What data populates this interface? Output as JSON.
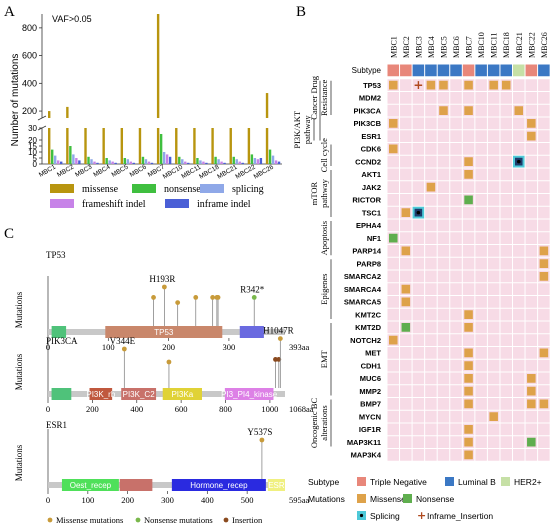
{
  "panel_labels": [
    "A",
    "B",
    "C"
  ],
  "panel_a": {
    "annotation": "VAF>0.05",
    "ylabel": "Number of mutations",
    "upper_ticks": [
      "800",
      "600",
      "400",
      "200"
    ],
    "lower_ticks": [
      "30",
      "20",
      "15",
      "10",
      "5",
      "0"
    ],
    "legend": [
      {
        "label": "missense",
        "color": "#b8950f"
      },
      {
        "label": "nonsense",
        "color": "#3fbf3f"
      },
      {
        "label": "splicing",
        "color": "#8fa8e8"
      },
      {
        "label": "frameshift indel",
        "color": "#c783e8"
      },
      {
        "label": "inframe indel",
        "color": "#4a5fd6"
      }
    ]
  },
  "chart_data": {
    "type": "bar",
    "categories": [
      "MBC1",
      "MBC2",
      "MBC3",
      "MBC4",
      "MBC5",
      "MBC6",
      "MBC7",
      "MBC10",
      "MBC11",
      "MBC18",
      "MBC21",
      "MBC22",
      "MBC26"
    ],
    "series": [
      {
        "name": "missense",
        "values": [
          200,
          230,
          120,
          110,
          110,
          120,
          950,
          110,
          110,
          115,
          120,
          150,
          330
        ]
      },
      {
        "name": "nonsense",
        "values": [
          12,
          15,
          6,
          5,
          5,
          6,
          25,
          6,
          5,
          6,
          6,
          8,
          12
        ]
      },
      {
        "name": "splicing",
        "values": [
          7,
          8,
          4,
          3,
          4,
          4,
          10,
          4,
          3,
          4,
          4,
          5,
          7
        ]
      },
      {
        "name": "frameshift indel",
        "values": [
          3,
          5,
          2,
          2,
          2,
          2,
          8,
          2,
          2,
          2,
          2,
          4,
          3
        ]
      },
      {
        "name": "inframe indel",
        "values": [
          2,
          3,
          1,
          1,
          1,
          1,
          6,
          1,
          1,
          1,
          1,
          5,
          2
        ]
      }
    ],
    "ylabel": "Number of mutations",
    "ylim": [
      0,
      900
    ],
    "axis_break": [
      30,
      150
    ]
  },
  "panel_b": {
    "samples": [
      "MBC1",
      "MBC2",
      "MBC3",
      "MBC4",
      "MBC5",
      "MBC6",
      "MBC7",
      "MBC10",
      "MBC11",
      "MBC18",
      "MBC21",
      "MBC22",
      "MBC26"
    ],
    "subtype_label": "Subtype",
    "subtypes": [
      "TN",
      "TN",
      "LB",
      "LB",
      "LB",
      "LB",
      "TN",
      "LB",
      "LB",
      "LB",
      "HER2",
      "TN",
      "LB"
    ],
    "groups": [
      {
        "label": [
          "Cancer Drug",
          "Resistance"
        ],
        "start": 0,
        "end": 3
      },
      {
        "label": [
          "PI3K/AKT",
          "pathway"
        ],
        "start": 3,
        "end": 5,
        "outer": true
      },
      {
        "label": [
          "Cell cycle"
        ],
        "start": 5,
        "end": 7
      },
      {
        "label": [
          "mTOR",
          "pathway"
        ],
        "start": 7,
        "end": 11
      },
      {
        "label": [
          "Apoptosis"
        ],
        "start": 11,
        "end": 14
      },
      {
        "label": [
          "Epigenes"
        ],
        "start": 14,
        "end": 19
      },
      {
        "label": [
          "EMT"
        ],
        "start": 19,
        "end": 25
      },
      {
        "label": [
          "Oncogenic BC",
          "alterations"
        ],
        "start": 25,
        "end": 29
      }
    ],
    "genes": [
      "TP53",
      "MDM2",
      "PIK3CA",
      "PIK3CB",
      "ESR1",
      "CDK6",
      "CCND2",
      "AKT1",
      "JAK2",
      "RICTOR",
      "TSC1",
      "EPHA4",
      "NF1",
      "PARP14",
      "PARP8",
      "SMARCA2",
      "SMARCA4",
      "SMARCA5",
      "KMT2C",
      "KMT2D",
      "NOTCH2",
      "MET",
      "CDH1",
      "MUC6",
      "MMP2",
      "BMP7",
      "MYCN",
      "IGF1R",
      "MAP3K11",
      "MAP3K4"
    ],
    "cells": [
      [
        0,
        "Missense"
      ],
      [
        3,
        "Missense"
      ],
      [
        4,
        "Missense"
      ],
      [
        6,
        "Missense"
      ],
      [
        8,
        "Missense"
      ],
      [
        9,
        "Missense"
      ],
      [
        2,
        "Inframe_Insertion"
      ],
      [
        4,
        "Missense"
      ],
      [
        6,
        "Missense"
      ],
      [
        10,
        "Missense"
      ],
      [
        0,
        "Missense"
      ],
      [
        11,
        "Missense"
      ],
      [
        11,
        "Missense"
      ],
      [
        0,
        "Missense"
      ],
      [
        6,
        "Missense"
      ],
      [
        10,
        "Splicing"
      ],
      [
        6,
        "Missense"
      ],
      [
        3,
        "Missense"
      ],
      [
        6,
        "Nonsense"
      ],
      [
        2,
        "Splicing"
      ],
      [
        1,
        "Missense"
      ],
      [
        0,
        "Nonsense"
      ],
      [
        1,
        "Missense"
      ],
      [
        12,
        "Missense"
      ],
      [
        12,
        "Missense"
      ],
      [
        12,
        "Missense"
      ],
      [
        1,
        "Missense"
      ],
      [
        1,
        "Missense"
      ],
      [
        6,
        "Missense"
      ],
      [
        6,
        "Missense"
      ],
      [
        1,
        "Nonsense"
      ],
      [
        0,
        "Missense"
      ],
      [
        6,
        "Missense"
      ],
      [
        12,
        "Missense"
      ],
      [
        6,
        "Missense"
      ],
      [
        6,
        "Missense"
      ],
      [
        11,
        "Missense"
      ],
      [
        6,
        "Missense"
      ],
      [
        11,
        "Missense"
      ],
      [
        6,
        "Missense"
      ],
      [
        11,
        "Missense"
      ],
      [
        12,
        "Missense"
      ],
      [
        8,
        "Missense"
      ],
      [
        6,
        "Missense"
      ],
      [
        6,
        "Missense"
      ],
      [
        11,
        "Nonsense"
      ],
      [
        6,
        "Missense"
      ]
    ],
    "cell_rows": [
      0,
      0,
      0,
      0,
      0,
      0,
      0,
      2,
      2,
      2,
      3,
      3,
      4,
      5,
      6,
      6,
      7,
      8,
      9,
      10,
      10,
      12,
      13,
      13,
      14,
      15,
      16,
      17,
      18,
      19,
      19,
      20,
      21,
      21,
      22,
      23,
      23,
      24,
      24,
      25,
      25,
      25,
      26,
      27,
      28,
      28,
      29
    ],
    "legend": {
      "subtype_title": "Subtype",
      "subtype_items": [
        {
          "label": "Triple Negative",
          "color": "#e8877a"
        },
        {
          "label": "Luminal B",
          "color": "#3b78c4"
        },
        {
          "label": "HER2+",
          "color": "#c6e0a6"
        }
      ],
      "mutation_title": "Mutations",
      "mutation_items": [
        {
          "label": "Missense",
          "color": "#dea24a"
        },
        {
          "label": "Nonsense",
          "color": "#5fae4e"
        },
        {
          "label": "Splicing",
          "color": "#4ec9d8"
        },
        {
          "label": "Inframe_Insertion",
          "color": "#b04a1f"
        }
      ]
    },
    "colors": {
      "empty": "#f7dbe6",
      "TN": "#e8877a",
      "LB": "#3b78c4",
      "HER2": "#c6e0a6"
    }
  },
  "panel_c": {
    "ylabel": "Mutations",
    "tracks": [
      {
        "gene": "TP53",
        "length_label": "393aa",
        "length": 393,
        "ticks": [
          "0",
          "100",
          "200",
          "300"
        ],
        "tick_values": [
          0,
          100,
          200,
          300
        ],
        "domains": [
          {
            "label": "",
            "start": 6,
            "end": 30,
            "color": "#4fc27a"
          },
          {
            "label": "TP53",
            "start": 95,
            "end": 289,
            "color": "#c9876b"
          },
          {
            "label": "",
            "start": 318,
            "end": 358,
            "color": "#6a6ae0"
          }
        ],
        "lollipops": [
          {
            "pos": 175,
            "h": 0.55,
            "type": "missense"
          },
          {
            "pos": 193,
            "h": 0.75,
            "type": "missense",
            "label": "H193R"
          },
          {
            "pos": 215,
            "h": 0.45,
            "type": "missense"
          },
          {
            "pos": 245,
            "h": 0.55,
            "type": "missense"
          },
          {
            "pos": 273,
            "h": 0.55,
            "type": "missense"
          },
          {
            "pos": 280,
            "h": 0.55,
            "type": "missense"
          },
          {
            "pos": 282,
            "h": 0.55,
            "type": "missense"
          },
          {
            "pos": 342,
            "h": 0.55,
            "type": "nonsense",
            "label": "R342*"
          }
        ]
      },
      {
        "gene": "PIK3CA",
        "length_label": "1068aa",
        "length": 1068,
        "ticks": [
          "0",
          "200",
          "400",
          "600",
          "800",
          "1000"
        ],
        "tick_values": [
          0,
          200,
          400,
          600,
          800,
          1000
        ],
        "domains": [
          {
            "label": "",
            "start": 16,
            "end": 105,
            "color": "#4fc27a"
          },
          {
            "label": "PI3K_rb",
            "start": 187,
            "end": 289,
            "color": "#c0583e"
          },
          {
            "label": "PI3K_C2",
            "start": 330,
            "end": 487,
            "color": "#c8716a"
          },
          {
            "label": "PI3Ka",
            "start": 517,
            "end": 694,
            "color": "#e0d236"
          },
          {
            "label": "PI3_PI4_kinase",
            "start": 797,
            "end": 1016,
            "color": "#dd80e6"
          }
        ],
        "lollipops": [
          {
            "pos": 344,
            "h": 0.75,
            "type": "missense",
            "label": "V344E"
          },
          {
            "pos": 545,
            "h": 0.5,
            "type": "missense"
          },
          {
            "pos": 1025,
            "h": 0.55,
            "type": "insertion"
          },
          {
            "pos": 1040,
            "h": 0.55,
            "type": "insertion"
          },
          {
            "pos": 1047,
            "h": 0.95,
            "type": "missense",
            "label": "H1047R"
          }
        ]
      },
      {
        "gene": "ESR1",
        "length_label": "595aa",
        "length": 595,
        "ticks": [
          "0",
          "100",
          "200",
          "300",
          "400",
          "500"
        ],
        "tick_values": [
          0,
          100,
          200,
          300,
          400,
          500
        ],
        "domains": [
          {
            "label": "Oest_recep",
            "start": 35,
            "end": 178,
            "color": "#4fe05a"
          },
          {
            "label": "",
            "start": 180,
            "end": 262,
            "color": "#c8716a"
          },
          {
            "label": "Hormone_recep",
            "start": 311,
            "end": 547,
            "color": "#2a2ae0"
          },
          {
            "label": "ESR",
            "start": 552,
            "end": 595,
            "color": "#f0f080"
          }
        ],
        "lollipops": [
          {
            "pos": 537,
            "h": 0.75,
            "type": "missense",
            "label": "Y537S"
          }
        ]
      }
    ],
    "legend": [
      {
        "label": "Missense mutations",
        "color": "#c89b3a"
      },
      {
        "label": "Nonsense mutations",
        "color": "#7ab84c"
      },
      {
        "label": "Insertion",
        "color": "#8a4a1f"
      }
    ],
    "colors": {
      "backbone": "#c8c8c8",
      "missense": "#c89b3a",
      "nonsense": "#7ab84c",
      "insertion": "#8a4a1f"
    }
  }
}
